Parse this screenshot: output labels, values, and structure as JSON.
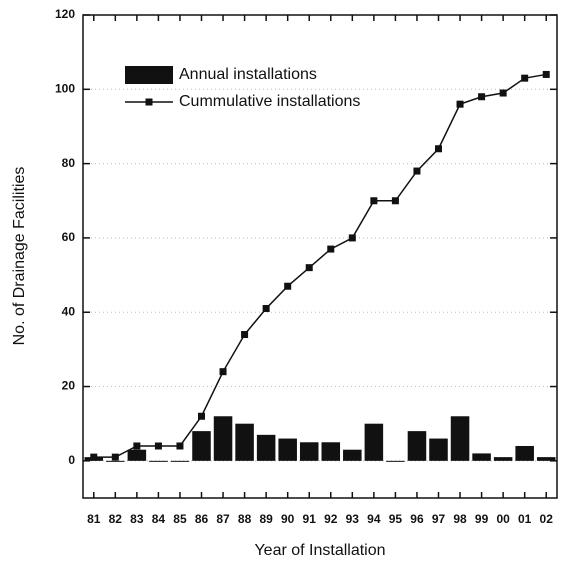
{
  "chart_data": {
    "type": "bar_line",
    "xlabel": "Year of Installation",
    "ylabel": "No. of Drainage Facilities",
    "categories": [
      "81",
      "82",
      "83",
      "84",
      "85",
      "86",
      "87",
      "88",
      "89",
      "90",
      "91",
      "92",
      "93",
      "94",
      "95",
      "96",
      "97",
      "98",
      "99",
      "00",
      "01",
      "02"
    ],
    "series": [
      {
        "name": "Annual installations",
        "type": "bar",
        "color": "#111111",
        "values": [
          1,
          0,
          3,
          0,
          0,
          8,
          12,
          10,
          7,
          6,
          5,
          5,
          3,
          10,
          0,
          8,
          6,
          12,
          2,
          1,
          4,
          1
        ]
      },
      {
        "name": "Cummulative installations",
        "type": "line",
        "color": "#111111",
        "values": [
          1,
          1,
          4,
          4,
          4,
          12,
          24,
          34,
          41,
          47,
          52,
          57,
          60,
          70,
          70,
          78,
          84,
          96,
          98,
          99,
          103,
          104
        ]
      }
    ],
    "ylim": [
      -10,
      120
    ],
    "yticks": [
      0,
      20,
      40,
      60,
      80,
      100,
      120
    ],
    "grid": true
  }
}
